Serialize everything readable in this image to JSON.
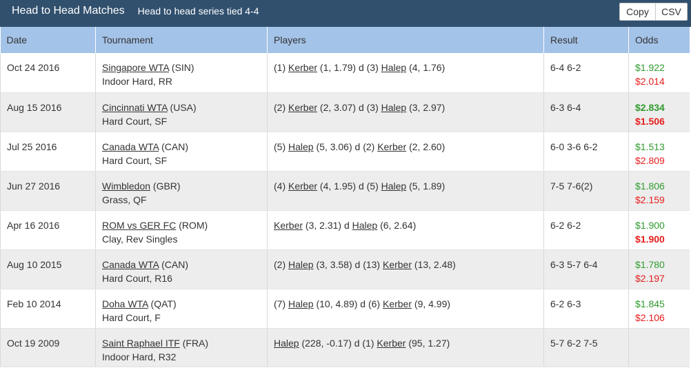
{
  "header": {
    "title": "Head to Head Matches",
    "subtitle": "Head to head series tied 4-4",
    "copy_label": "Copy",
    "csv_label": "CSV"
  },
  "columns": [
    "Date",
    "Tournament",
    "Players",
    "Result",
    "Odds"
  ],
  "colors": {
    "header_bar": "#31506e",
    "table_header": "#a4c3e8",
    "odds_green": "#2e9b2e",
    "odds_red": "#e61c1c",
    "row_alt": "#ededed"
  },
  "rows": [
    {
      "date": "Oct 24 2016",
      "tournament": "Singapore WTA",
      "country": " (SIN)",
      "surface": "Indoor Hard, RR",
      "p1_seed": "(1) ",
      "p1": "Kerber",
      "p1_info": " (1, 1.79) d ",
      "p2_seed": "(3) ",
      "p2": "Halep",
      "p2_info": " (4, 1.76)",
      "result": "6-4 6-2",
      "odds1": "$1.922",
      "odds1_color": "green",
      "odds1_bold": false,
      "odds2": "$2.014",
      "odds2_color": "red",
      "odds2_bold": false
    },
    {
      "date": "Aug 15 2016",
      "tournament": "Cincinnati WTA",
      "country": " (USA)",
      "surface": "Hard Court, SF",
      "p1_seed": "(2) ",
      "p1": "Kerber",
      "p1_info": " (2, 3.07) d ",
      "p2_seed": "(3) ",
      "p2": "Halep",
      "p2_info": " (3, 2.97)",
      "result": "6-3 6-4",
      "odds1": "$2.834",
      "odds1_color": "green",
      "odds1_bold": true,
      "odds2": "$1.506",
      "odds2_color": "red",
      "odds2_bold": true
    },
    {
      "date": "Jul 25 2016",
      "tournament": "Canada WTA",
      "country": " (CAN)",
      "surface": "Hard Court, SF",
      "p1_seed": "(5) ",
      "p1": "Halep",
      "p1_info": " (5, 3.06) d ",
      "p2_seed": "(2) ",
      "p2": "Kerber",
      "p2_info": " (2, 2.60)",
      "result": "6-0 3-6 6-2",
      "odds1": "$1.513",
      "odds1_color": "green",
      "odds1_bold": false,
      "odds2": "$2.809",
      "odds2_color": "red",
      "odds2_bold": false
    },
    {
      "date": "Jun 27 2016",
      "tournament": "Wimbledon",
      "country": " (GBR)",
      "surface": "Grass, QF",
      "p1_seed": "(4) ",
      "p1": "Kerber",
      "p1_info": " (4, 1.95) d ",
      "p2_seed": "(5) ",
      "p2": "Halep",
      "p2_info": " (5, 1.89)",
      "result": "7-5 7-6(2)",
      "odds1": "$1.806",
      "odds1_color": "green",
      "odds1_bold": false,
      "odds2": "$2.159",
      "odds2_color": "red",
      "odds2_bold": false
    },
    {
      "date": "Apr 16 2016",
      "tournament": "ROM vs GER FC",
      "country": " (ROM)",
      "surface": "Clay, Rev Singles",
      "p1_seed": "",
      "p1": "Kerber",
      "p1_info": " (3, 2.31) d ",
      "p2_seed": "",
      "p2": "Halep",
      "p2_info": " (6, 2.64)",
      "result": "6-2 6-2",
      "odds1": "$1.900",
      "odds1_color": "green",
      "odds1_bold": false,
      "odds2": "$1.900",
      "odds2_color": "red",
      "odds2_bold": true
    },
    {
      "date": "Aug 10 2015",
      "tournament": "Canada WTA",
      "country": " (CAN)",
      "surface": "Hard Court, R16",
      "p1_seed": "(2) ",
      "p1": "Halep",
      "p1_info": " (3, 3.58) d ",
      "p2_seed": "(13) ",
      "p2": "Kerber",
      "p2_info": " (13, 2.48)",
      "result": "6-3 5-7 6-4",
      "odds1": "$1.780",
      "odds1_color": "green",
      "odds1_bold": false,
      "odds2": "$2.197",
      "odds2_color": "red",
      "odds2_bold": false
    },
    {
      "date": "Feb 10 2014",
      "tournament": "Doha WTA",
      "country": " (QAT)",
      "surface": "Hard Court, F",
      "p1_seed": "(7) ",
      "p1": "Halep",
      "p1_info": " (10, 4.89) d ",
      "p2_seed": "(6) ",
      "p2": "Kerber",
      "p2_info": " (9, 4.99)",
      "result": "6-2 6-3",
      "odds1": "$1.845",
      "odds1_color": "green",
      "odds1_bold": false,
      "odds2": "$2.106",
      "odds2_color": "red",
      "odds2_bold": false
    },
    {
      "date": "Oct 19 2009",
      "tournament": "Saint Raphael ITF",
      "country": " (FRA)",
      "surface": "Indoor Hard, R32",
      "p1_seed": "",
      "p1": "Halep",
      "p1_info": " (228, -0.17) d ",
      "p2_seed": "(1) ",
      "p2": "Kerber",
      "p2_info": " (95, 1.27)",
      "result": "5-7 6-2 7-5",
      "odds1": "",
      "odds1_color": "green",
      "odds1_bold": false,
      "odds2": "",
      "odds2_color": "red",
      "odds2_bold": false
    }
  ]
}
